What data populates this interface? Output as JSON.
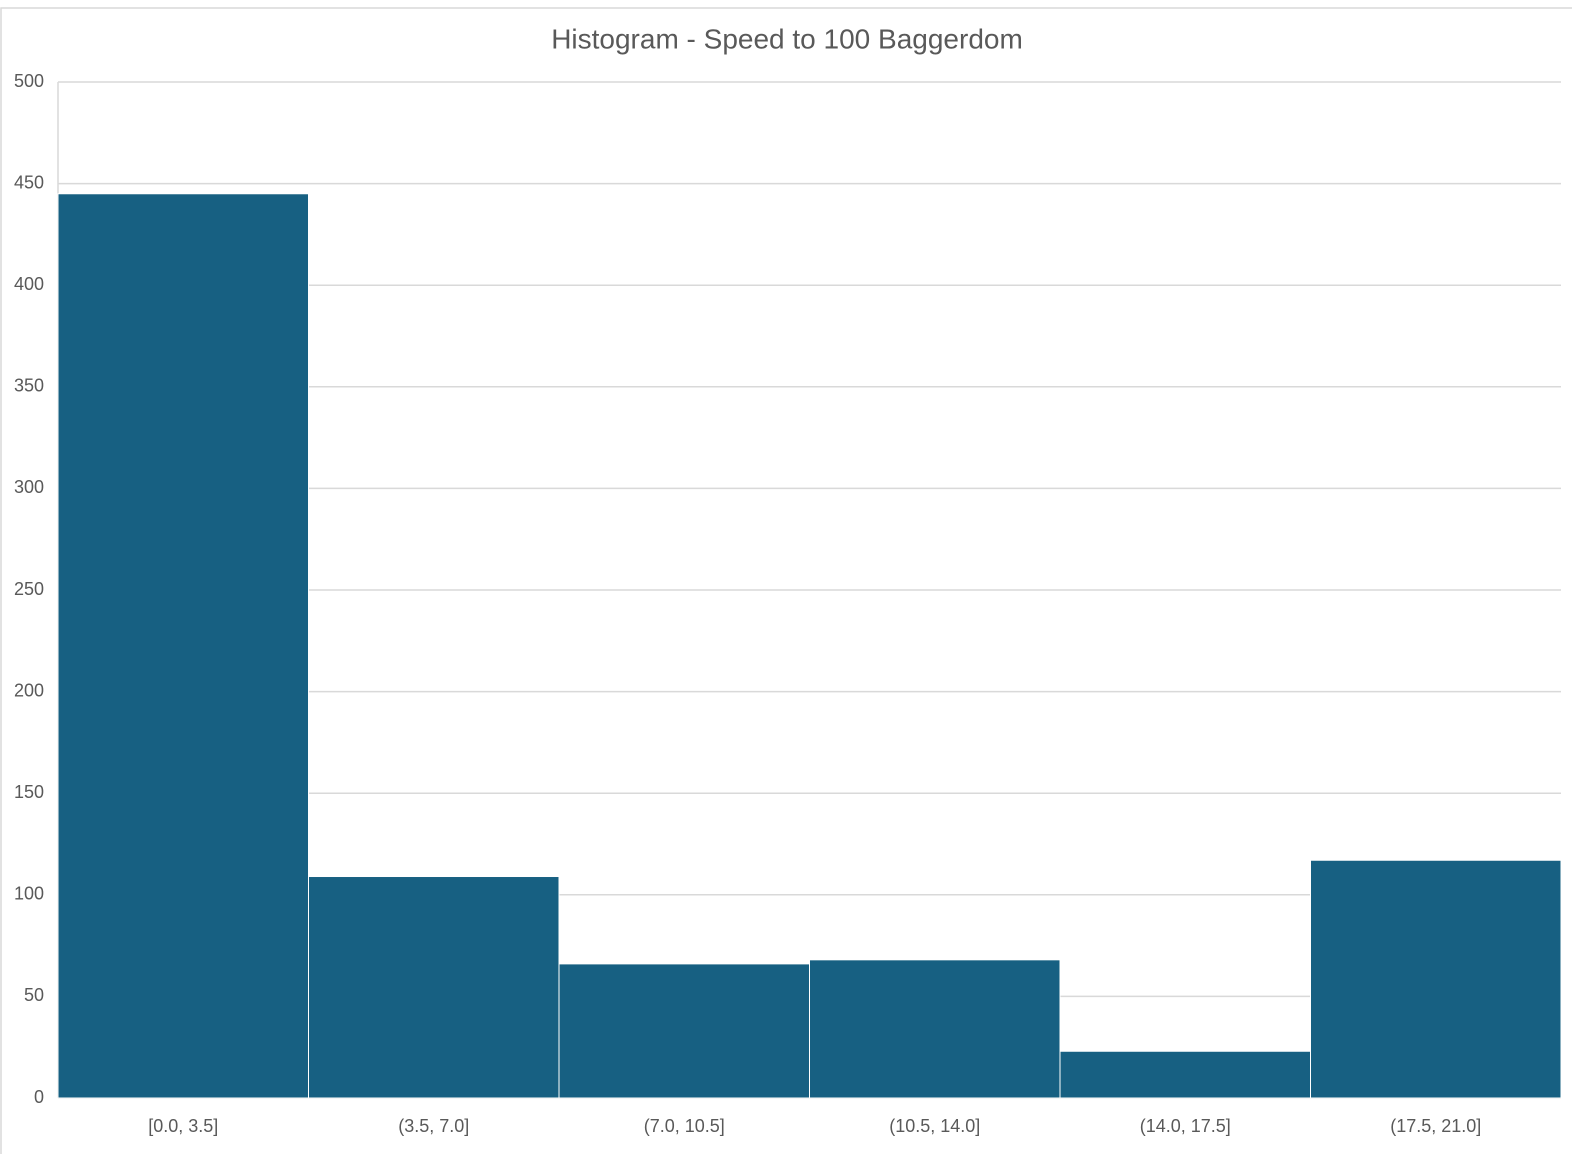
{
  "chart_data": {
    "type": "bar",
    "title": "Histogram - Speed to 100 Baggerdom",
    "categories": [
      "[0.0, 3.5]",
      "(3.5, 7.0]",
      "(7.0, 10.5]",
      "(10.5, 14.0]",
      "(14.0, 17.5]",
      "(17.5, 21.0]"
    ],
    "values": [
      445,
      109,
      66,
      68,
      23,
      117
    ],
    "color": "#176082",
    "ylim": [
      0,
      500
    ],
    "yticks": [
      0,
      50,
      100,
      150,
      200,
      250,
      300,
      350,
      400,
      450,
      500
    ],
    "grid": true
  }
}
